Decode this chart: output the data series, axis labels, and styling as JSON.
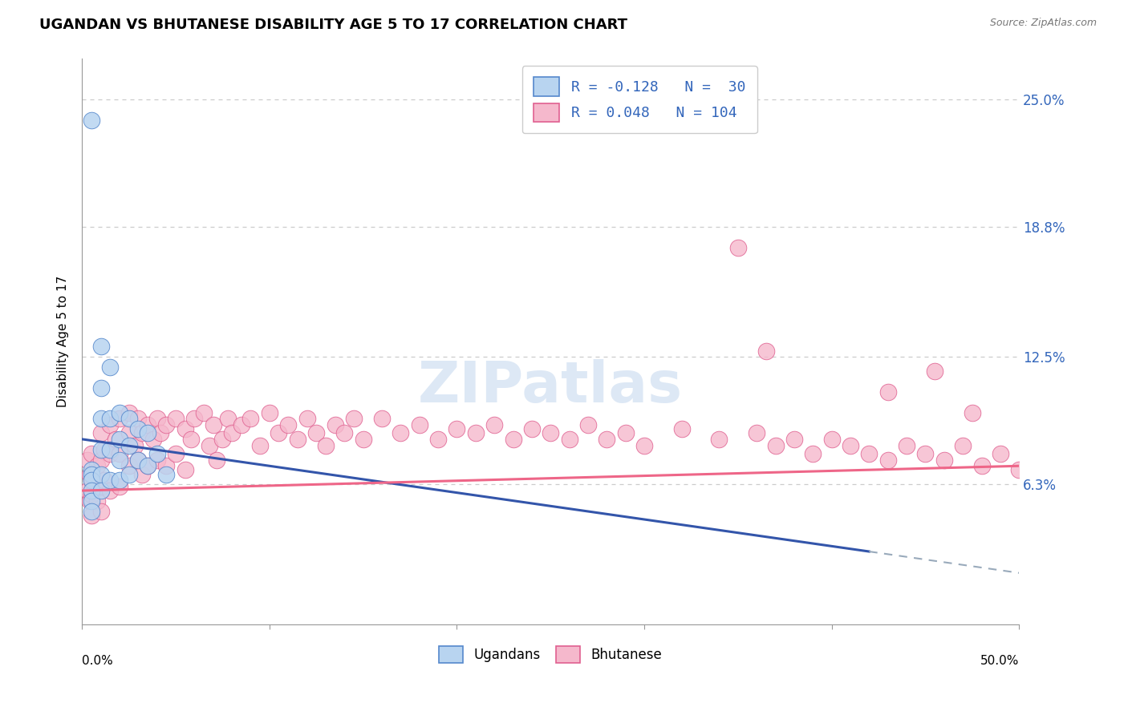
{
  "title": "UGANDAN VS BHUTANESE DISABILITY AGE 5 TO 17 CORRELATION CHART",
  "source": "Source: ZipAtlas.com",
  "ylabel": "Disability Age 5 to 17",
  "ytick_labels": [
    "6.3%",
    "12.5%",
    "18.8%",
    "25.0%"
  ],
  "ytick_values": [
    0.063,
    0.125,
    0.188,
    0.25
  ],
  "xmin": 0.0,
  "xmax": 0.5,
  "ymin": -0.005,
  "ymax": 0.27,
  "ugandan_color": "#b8d4f0",
  "bhutanese_color": "#f5b8cc",
  "ugandan_edge_color": "#5588cc",
  "bhutanese_edge_color": "#e06090",
  "ugandan_line_color": "#3355aa",
  "bhutanese_line_color": "#ee6688",
  "dashed_line_color": "#99aabb",
  "watermark": "ZIPatlas",
  "background_color": "#ffffff",
  "ugandan_R": -0.128,
  "ugandan_N": 30,
  "bhutanese_R": 0.048,
  "bhutanese_N": 104,
  "ugandan_points_x": [
    0.005,
    0.005,
    0.005,
    0.005,
    0.005,
    0.005,
    0.01,
    0.01,
    0.01,
    0.01,
    0.01,
    0.01,
    0.015,
    0.015,
    0.015,
    0.015,
    0.02,
    0.02,
    0.02,
    0.02,
    0.025,
    0.025,
    0.025,
    0.03,
    0.03,
    0.035,
    0.035,
    0.04,
    0.045,
    0.005
  ],
  "ugandan_points_y": [
    0.07,
    0.068,
    0.065,
    0.06,
    0.055,
    0.05,
    0.13,
    0.11,
    0.095,
    0.08,
    0.068,
    0.06,
    0.12,
    0.095,
    0.08,
    0.065,
    0.098,
    0.085,
    0.075,
    0.065,
    0.095,
    0.082,
    0.068,
    0.09,
    0.075,
    0.088,
    0.072,
    0.078,
    0.068,
    0.24
  ],
  "bhutanese_points_x": [
    0.003,
    0.003,
    0.004,
    0.004,
    0.005,
    0.005,
    0.005,
    0.005,
    0.008,
    0.008,
    0.01,
    0.01,
    0.01,
    0.01,
    0.012,
    0.012,
    0.015,
    0.015,
    0.015,
    0.018,
    0.02,
    0.02,
    0.02,
    0.025,
    0.025,
    0.025,
    0.028,
    0.03,
    0.03,
    0.032,
    0.032,
    0.035,
    0.035,
    0.038,
    0.04,
    0.04,
    0.042,
    0.045,
    0.045,
    0.05,
    0.05,
    0.055,
    0.055,
    0.058,
    0.06,
    0.065,
    0.068,
    0.07,
    0.072,
    0.075,
    0.078,
    0.08,
    0.085,
    0.09,
    0.095,
    0.1,
    0.105,
    0.11,
    0.115,
    0.12,
    0.125,
    0.13,
    0.135,
    0.14,
    0.145,
    0.15,
    0.16,
    0.17,
    0.18,
    0.19,
    0.2,
    0.21,
    0.22,
    0.23,
    0.24,
    0.25,
    0.26,
    0.27,
    0.28,
    0.29,
    0.3,
    0.32,
    0.34,
    0.35,
    0.36,
    0.37,
    0.38,
    0.39,
    0.4,
    0.41,
    0.42,
    0.43,
    0.44,
    0.45,
    0.46,
    0.47,
    0.48,
    0.49,
    0.5,
    0.365,
    0.43,
    0.455,
    0.475
  ],
  "bhutanese_points_y": [
    0.075,
    0.06,
    0.068,
    0.055,
    0.078,
    0.065,
    0.058,
    0.048,
    0.072,
    0.055,
    0.088,
    0.075,
    0.062,
    0.05,
    0.08,
    0.065,
    0.092,
    0.078,
    0.06,
    0.085,
    0.095,
    0.078,
    0.062,
    0.088,
    0.098,
    0.072,
    0.082,
    0.095,
    0.075,
    0.088,
    0.068,
    0.092,
    0.072,
    0.085,
    0.095,
    0.075,
    0.088,
    0.092,
    0.072,
    0.095,
    0.078,
    0.09,
    0.07,
    0.085,
    0.095,
    0.098,
    0.082,
    0.092,
    0.075,
    0.085,
    0.095,
    0.088,
    0.092,
    0.095,
    0.082,
    0.098,
    0.088,
    0.092,
    0.085,
    0.095,
    0.088,
    0.082,
    0.092,
    0.088,
    0.095,
    0.085,
    0.095,
    0.088,
    0.092,
    0.085,
    0.09,
    0.088,
    0.092,
    0.085,
    0.09,
    0.088,
    0.085,
    0.092,
    0.085,
    0.088,
    0.082,
    0.09,
    0.085,
    0.178,
    0.088,
    0.082,
    0.085,
    0.078,
    0.085,
    0.082,
    0.078,
    0.075,
    0.082,
    0.078,
    0.075,
    0.082,
    0.072,
    0.078,
    0.07,
    0.128,
    0.108,
    0.118,
    0.098
  ]
}
